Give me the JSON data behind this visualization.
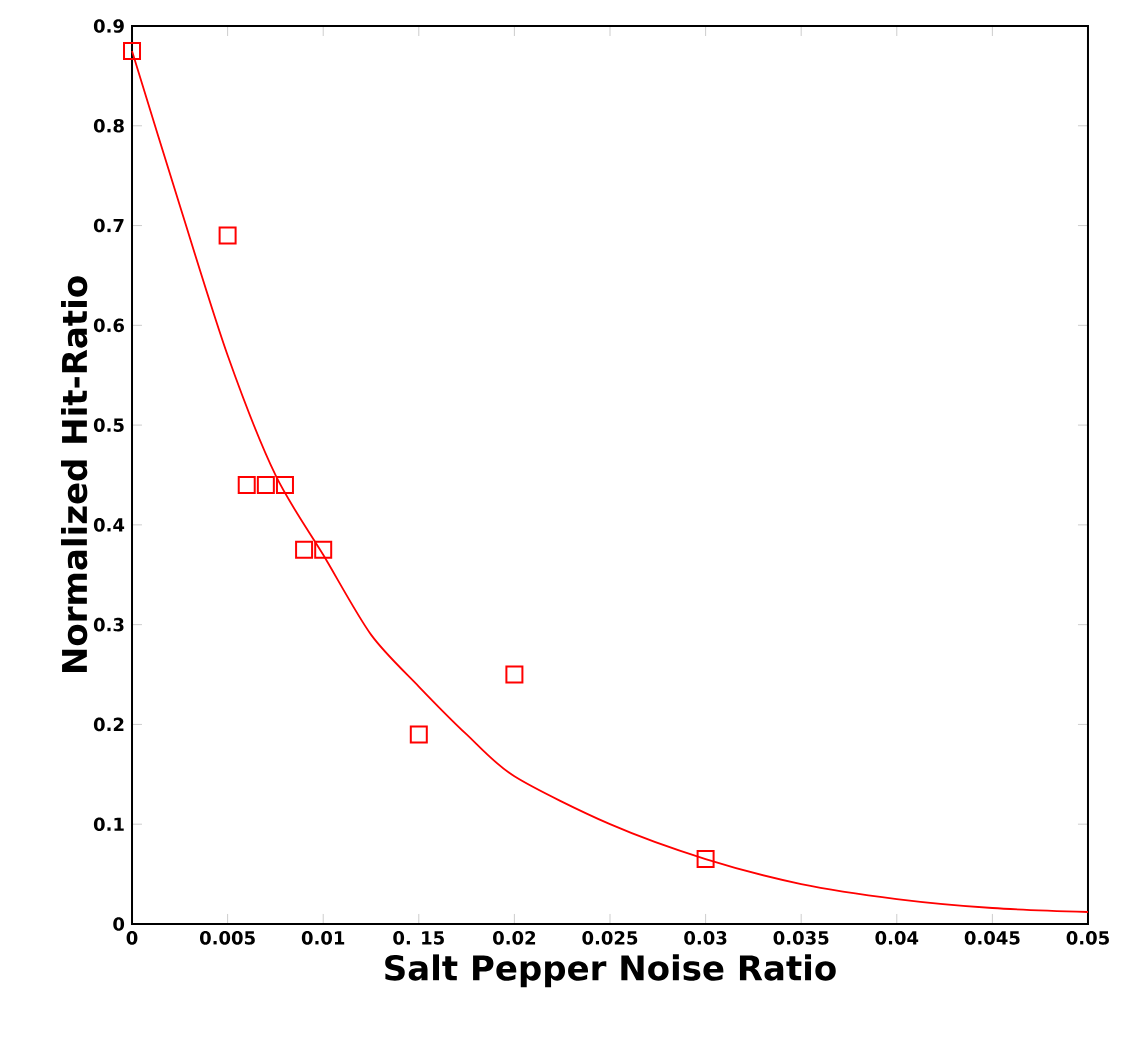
{
  "chart_data": {
    "type": "scatter",
    "xlabel": "Salt Pepper Noise Ratio",
    "ylabel": "Normalized Hit-Ratio",
    "xlim": [
      0,
      0.05
    ],
    "ylim": [
      0,
      0.9
    ],
    "xticks": [
      0,
      0.005,
      0.01,
      {
        "value": 0.015,
        "label": "0. 15"
      },
      0.02,
      0.025,
      0.03,
      0.035,
      0.04,
      0.045,
      0.05
    ],
    "yticks": [
      0,
      0.1,
      0.2,
      0.3,
      0.4,
      0.5,
      0.6,
      0.7,
      0.8,
      0.9
    ],
    "grid": false,
    "series": [
      {
        "marker": "square",
        "color": "#ff0000",
        "x": [
          0,
          0.005,
          0.006,
          0.007,
          0.008,
          0.009,
          0.01,
          0.015,
          0.02,
          0.03
        ],
        "values": [
          0.875,
          0.69,
          0.44,
          0.44,
          0.44,
          0.375,
          0.375,
          0.19,
          0.25,
          0.065
        ]
      },
      {
        "type": "line",
        "marker": "none",
        "line_style": "solid",
        "color": "#ff0000",
        "x": [
          0,
          0.0025,
          0.005,
          0.0075,
          0.01,
          0.0125,
          0.015,
          0.0175,
          0.02,
          0.025,
          0.03,
          0.035,
          0.04,
          0.045,
          0.05
        ],
        "values": [
          0.875,
          0.72,
          0.57,
          0.45,
          0.37,
          0.29,
          0.238,
          0.19,
          0.148,
          0.1,
          0.065,
          0.04,
          0.025,
          0.016,
          0.012
        ]
      }
    ]
  }
}
